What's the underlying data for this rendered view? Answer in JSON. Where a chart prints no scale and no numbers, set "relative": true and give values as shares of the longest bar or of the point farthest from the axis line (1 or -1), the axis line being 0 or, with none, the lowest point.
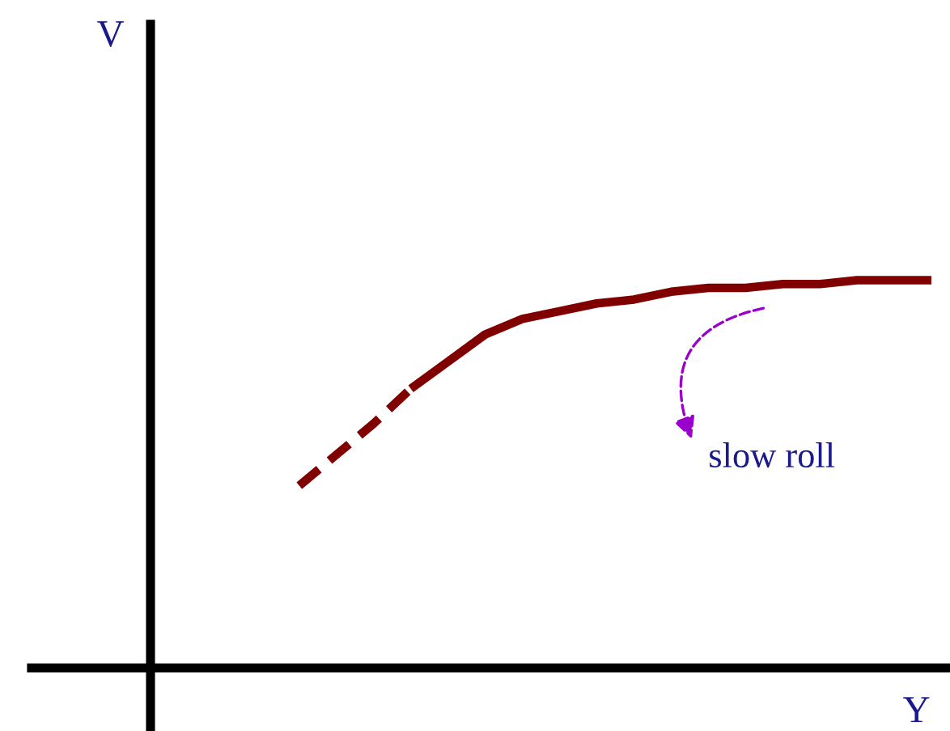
{
  "chart_data": {
    "type": "line",
    "relative": true,
    "xlabel": "Y",
    "categories": [
      null,
      null,
      null,
      null,
      null,
      null,
      null,
      null,
      null,
      null,
      null,
      null,
      null,
      null,
      null,
      null,
      null,
      null,
      null,
      null,
      null,
      null
    ],
    "series": [
      {
        "color": "#800000",
        "line_style": "dashed",
        "values": [
          null,
          null,
          null,
          null,
          0.47,
          0.55,
          0.63,
          0.72,
          null,
          null,
          null,
          null,
          null,
          null,
          null,
          null,
          null,
          null,
          null,
          null,
          null,
          null
        ]
      },
      {
        "color": "#800000",
        "line_style": "solid",
        "values": [
          null,
          null,
          null,
          null,
          null,
          null,
          null,
          0.72,
          0.79,
          0.86,
          0.9,
          0.92,
          0.94,
          0.95,
          0.97,
          0.98,
          0.98,
          0.99,
          0.99,
          1.0,
          1.0,
          1.0
        ]
      }
    ],
    "annotations": [
      "slow roll",
      "V"
    ],
    "marker": "none",
    "legend": false
  }
}
